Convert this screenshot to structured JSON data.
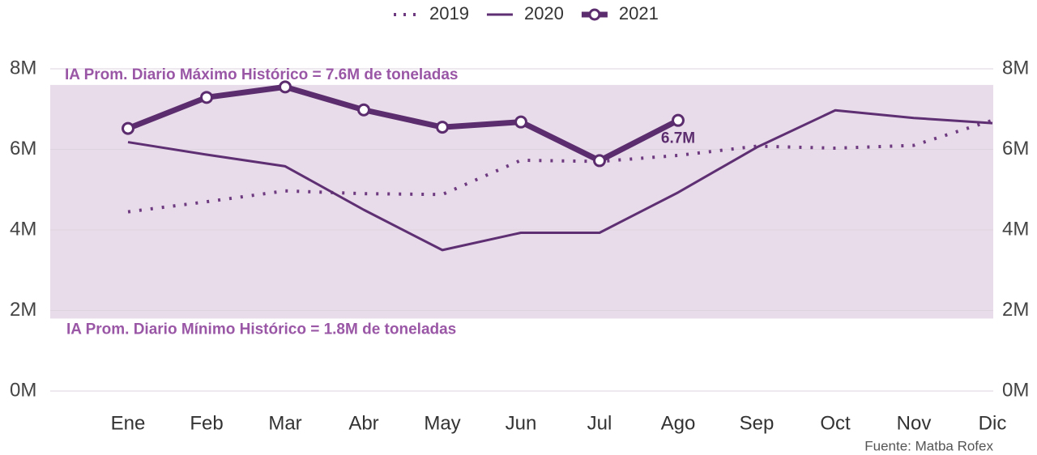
{
  "chart_data": {
    "type": "line",
    "categories": [
      "Ene",
      "Feb",
      "Mar",
      "Abr",
      "May",
      "Jun",
      "Jul",
      "Ago",
      "Sep",
      "Oct",
      "Nov",
      "Dic"
    ],
    "series": [
      {
        "name": "2019",
        "color": "#6e3a80",
        "line_style": "dotted",
        "markers": false,
        "values": [
          4.45,
          4.7,
          4.97,
          4.9,
          4.88,
          5.73,
          5.7,
          5.85,
          6.08,
          6.03,
          6.1,
          6.72
        ]
      },
      {
        "name": "2020",
        "color": "#5e2f72",
        "line_style": "solid",
        "markers": false,
        "values": [
          6.18,
          5.87,
          5.58,
          4.5,
          3.5,
          3.93,
          3.93,
          4.93,
          6.05,
          6.97,
          6.78,
          6.65
        ]
      },
      {
        "name": "2021",
        "color": "#5c2d6e",
        "line_style": "thick",
        "markers": true,
        "values": [
          6.52,
          7.29,
          7.55,
          6.98,
          6.55,
          6.68,
          5.72,
          6.72,
          null,
          null,
          null,
          null
        ],
        "value_labels": [
          null,
          null,
          null,
          null,
          null,
          null,
          null,
          "6.7M",
          null,
          null,
          null,
          null
        ]
      }
    ],
    "ylim": [
      0,
      8
    ],
    "yticks": [
      {
        "value": 0,
        "label": "0M"
      },
      {
        "value": 2,
        "label": "2M"
      },
      {
        "value": 4,
        "label": "4M"
      },
      {
        "value": 6,
        "label": "6M"
      },
      {
        "value": 8,
        "label": "8M"
      }
    ],
    "grid": true,
    "secondary_axis_labels": true,
    "legend": "top",
    "reference_band": {
      "low": 1.8,
      "high": 7.6,
      "color": "#e9dcea",
      "high_label": "IA Prom. Diario Máximo Histórico = 7.6M de toneladas",
      "low_label": "IA Prom. Diario Mínimo Histórico = 1.8M de toneladas"
    },
    "source": "Fuente: Matba Rofex"
  }
}
